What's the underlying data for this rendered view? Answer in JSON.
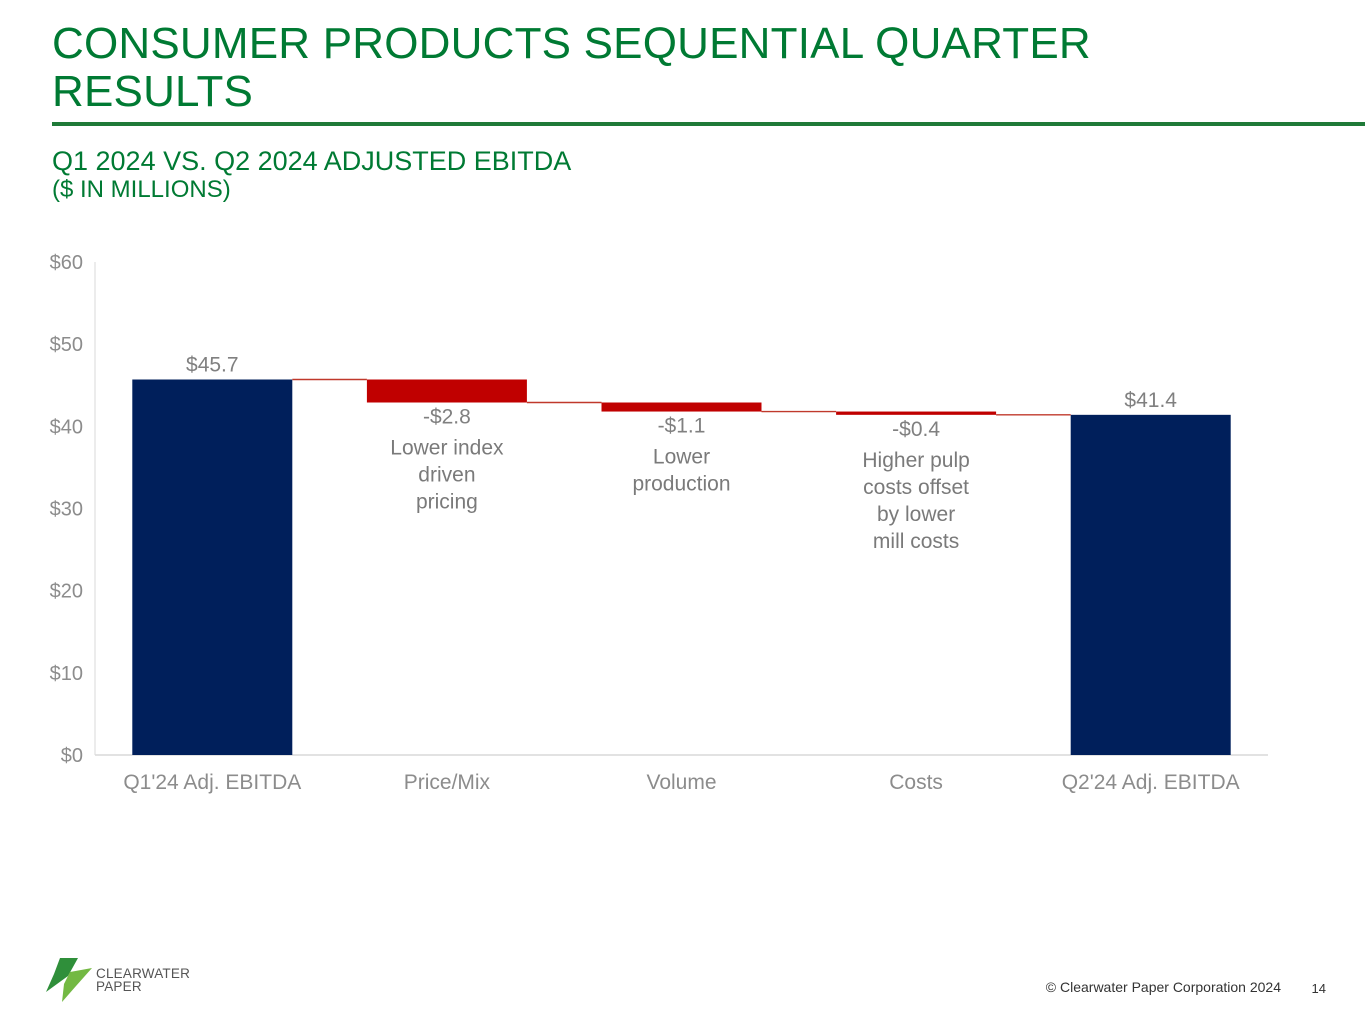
{
  "page": {
    "title": "CONSUMER PRODUCTS SEQUENTIAL QUARTER RESULTS",
    "subtitle": "Q1 2024 VS. Q2 2024 ADJUSTED EBITDA",
    "units": "($ IN MILLIONS)"
  },
  "colors": {
    "accent_green": "#007a33",
    "total_bar": "#001f5b",
    "decrease_bar": "#c00000",
    "axis_text": "#8c8c8c"
  },
  "chart_data": {
    "type": "bar",
    "subtype": "waterfall",
    "title": "Q1 2024 VS. Q2 2024 ADJUSTED EBITDA",
    "ylabel": "($ IN MILLIONS)",
    "ylim": [
      0,
      60
    ],
    "yticks": [
      0,
      10,
      20,
      30,
      40,
      50,
      60
    ],
    "ytick_labels": [
      "$0",
      "$10",
      "$20",
      "$30",
      "$40",
      "$50",
      "$60"
    ],
    "categories": [
      "Q1'24 Adj. EBITDA",
      "Price/Mix",
      "Volume",
      "Costs",
      "Q2'24 Adj. EBITDA"
    ],
    "values": [
      45.7,
      -2.8,
      -1.1,
      -0.4,
      41.4
    ],
    "kinds": [
      "total",
      "delta",
      "delta",
      "delta",
      "total"
    ],
    "data_labels": [
      "$45.7",
      "-$2.8",
      "-$1.1",
      "-$0.4",
      "$41.4"
    ],
    "annotations": [
      "",
      "Lower index driven pricing",
      "Lower production",
      "Higher pulp costs offset by lower mill costs",
      ""
    ],
    "grid": false,
    "legend": "none"
  },
  "footer": {
    "logo_line1": "CLEARWATER",
    "logo_line2": "PAPER",
    "copyright": "© Clearwater Paper Corporation 2024",
    "page_number": "14"
  }
}
